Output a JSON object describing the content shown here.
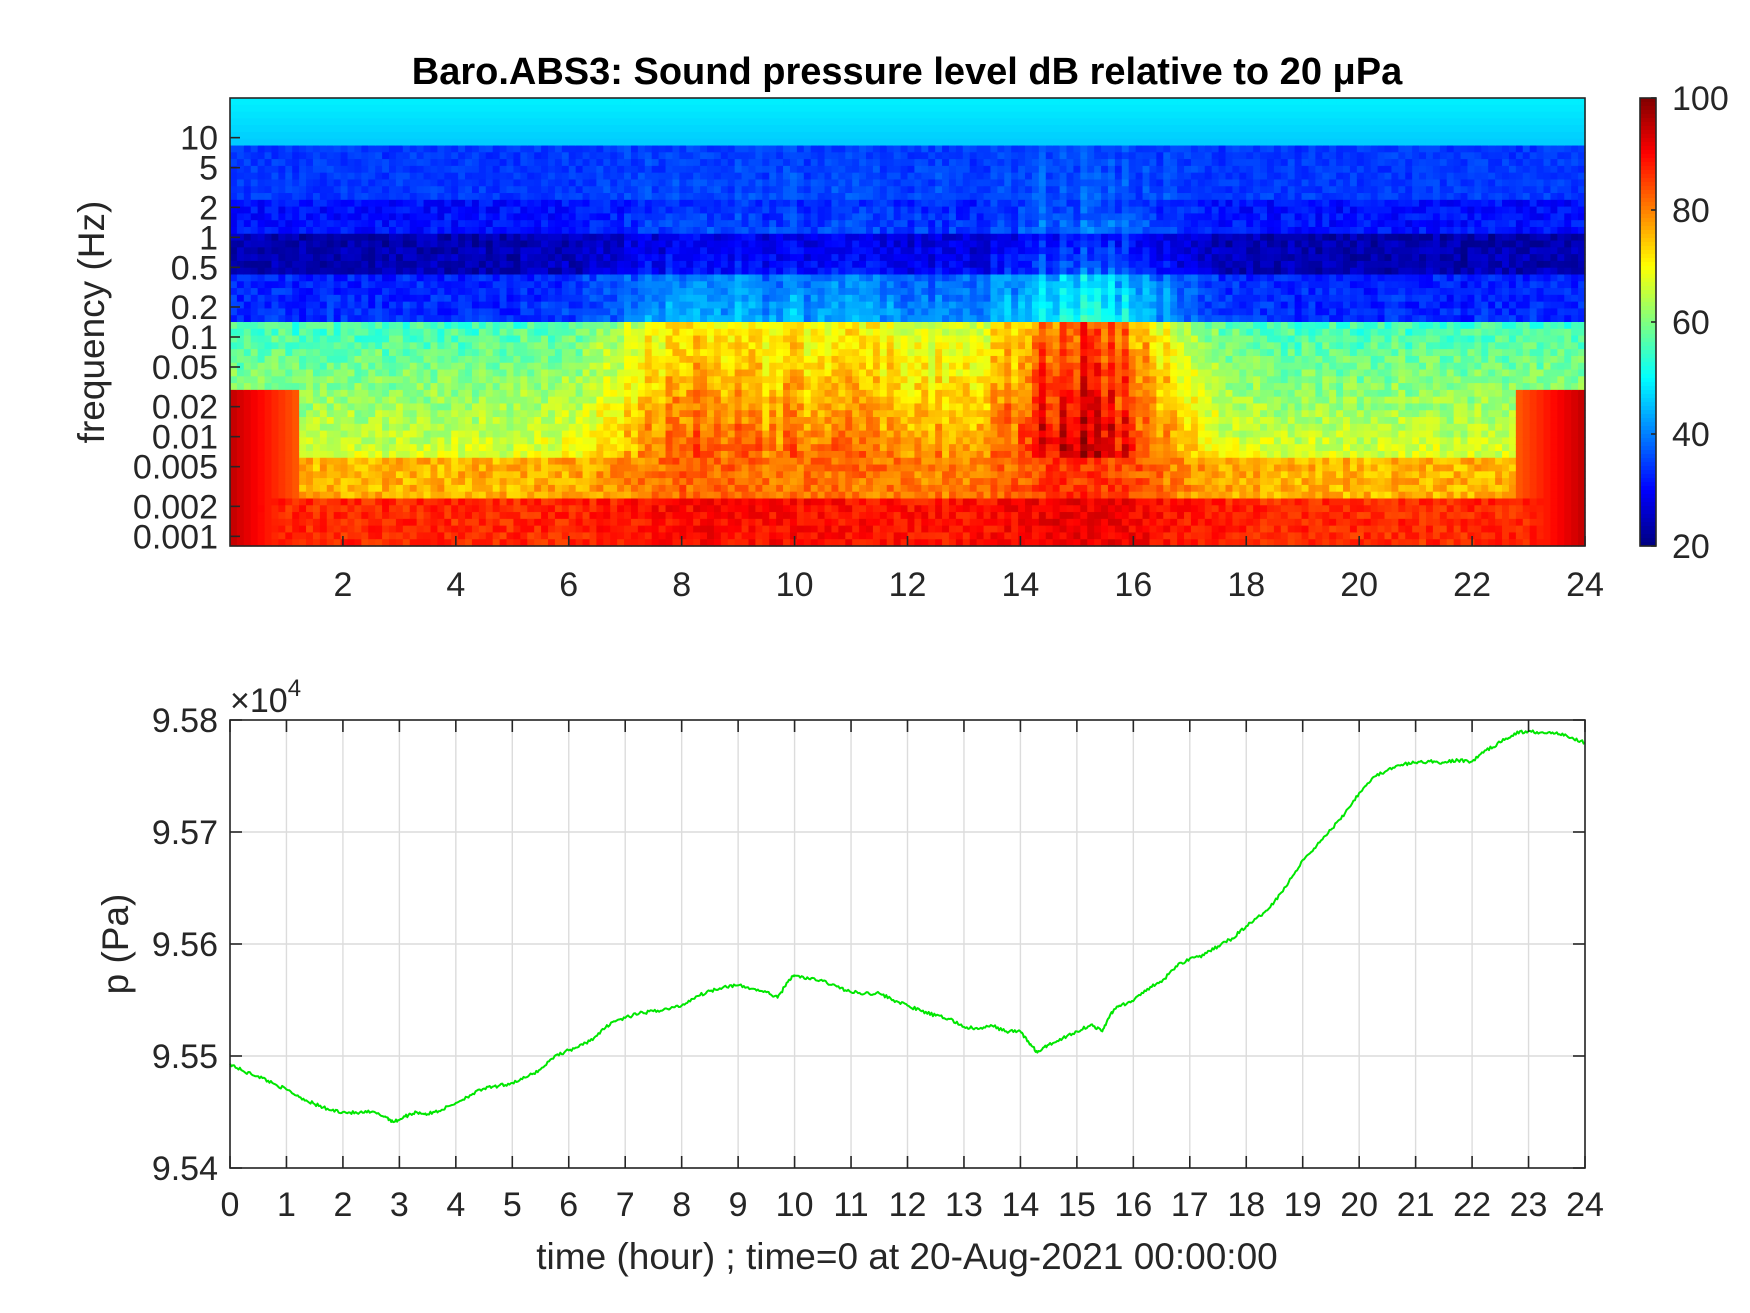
{
  "chart_data": [
    {
      "type": "heatmap",
      "title": "Baro.ABS3: Sound pressure level dB relative to 20 μPa",
      "ylabel": "frequency (Hz)",
      "xlabel": "",
      "xlim": [
        0,
        24
      ],
      "ylim": [
        0.0008,
        25
      ],
      "yscale": "log",
      "x_ticks": [
        "2",
        "4",
        "6",
        "8",
        "10",
        "12",
        "14",
        "16",
        "18",
        "20",
        "22",
        "24"
      ],
      "y_ticks": [
        "0.001",
        "0.002",
        "0.005",
        "0.01",
        "0.02",
        "0.05",
        "0.1",
        "0.2",
        "0.5",
        "1",
        "2",
        "5",
        "10"
      ],
      "colorbar": {
        "colormap": "jet",
        "range": [
          20,
          100
        ],
        "ticks": [
          "20",
          "40",
          "60",
          "80",
          "100"
        ]
      },
      "grid": false
    },
    {
      "type": "line",
      "title": "",
      "xlabel": "time (hour) ; time=0 at 20-Aug-2021 00:00:00",
      "ylabel": "p (Pa)",
      "y_exponent": "×10",
      "y_exponent_power": "4",
      "xlim": [
        0,
        24
      ],
      "ylim": [
        95400,
        95800
      ],
      "x_ticks": [
        "0",
        "1",
        "2",
        "3",
        "4",
        "5",
        "6",
        "7",
        "8",
        "9",
        "10",
        "11",
        "12",
        "13",
        "14",
        "15",
        "16",
        "17",
        "18",
        "19",
        "20",
        "21",
        "22",
        "23",
        "24"
      ],
      "y_ticks": [
        "9.54",
        "9.55",
        "9.56",
        "9.57",
        "9.58"
      ],
      "grid": true,
      "line_color": "#00e600",
      "series": [
        {
          "x": [
            0,
            0.25,
            0.5,
            0.75,
            1,
            1.25,
            1.5,
            1.75,
            2,
            2.25,
            2.5,
            2.75,
            2.9,
            3.1,
            3.3,
            3.5,
            3.75,
            4,
            4.25,
            4.5,
            4.75,
            5,
            5.25,
            5.5,
            5.75,
            6,
            6.25,
            6.5,
            6.75,
            7,
            7.25,
            7.5,
            7.75,
            8,
            8.25,
            8.5,
            8.75,
            9,
            9.25,
            9.5,
            9.7,
            9.9,
            10,
            10.25,
            10.5,
            10.75,
            11,
            11.25,
            11.5,
            11.75,
            12,
            12.25,
            12.5,
            12.75,
            13,
            13.25,
            13.5,
            13.75,
            14,
            14.15,
            14.3,
            14.5,
            14.75,
            15,
            15.25,
            15.45,
            15.6,
            15.75,
            16,
            16.25,
            16.5,
            16.75,
            17,
            17.25,
            17.5,
            17.75,
            18,
            18.25,
            18.5,
            18.75,
            19,
            19.25,
            19.5,
            19.75,
            20,
            20.25,
            20.5,
            20.75,
            21,
            21.25,
            21.5,
            21.75,
            22,
            22.25,
            22.5,
            22.75,
            23,
            23.25,
            23.5,
            23.75,
            24
          ],
          "y": [
            95493,
            95486,
            95482,
            95476,
            95470,
            95463,
            95457,
            95452,
            95450,
            95449,
            95450,
            95446,
            95441,
            95446,
            95450,
            95448,
            95452,
            95458,
            95465,
            95471,
            95473,
            95476,
            95481,
            95488,
            95500,
            95505,
            95510,
            95518,
            95530,
            95534,
            95538,
            95540,
            95542,
            95545,
            95553,
            95558,
            95562,
            95563,
            95560,
            95557,
            95552,
            95568,
            95572,
            95569,
            95567,
            95562,
            95557,
            95556,
            95556,
            95550,
            95545,
            95540,
            95536,
            95533,
            95526,
            95524,
            95527,
            95522,
            95522,
            95512,
            95503,
            95510,
            95516,
            95522,
            95528,
            95522,
            95538,
            95545,
            95549,
            95560,
            95566,
            95580,
            95587,
            95590,
            95598,
            95605,
            95616,
            95625,
            95638,
            95655,
            95675,
            95688,
            95702,
            95717,
            95735,
            95749,
            95755,
            95760,
            95762,
            95763,
            95762,
            95764,
            95763,
            95773,
            95780,
            95788,
            95790,
            95789,
            95789,
            95784,
            95780
          ]
        }
      ]
    }
  ]
}
